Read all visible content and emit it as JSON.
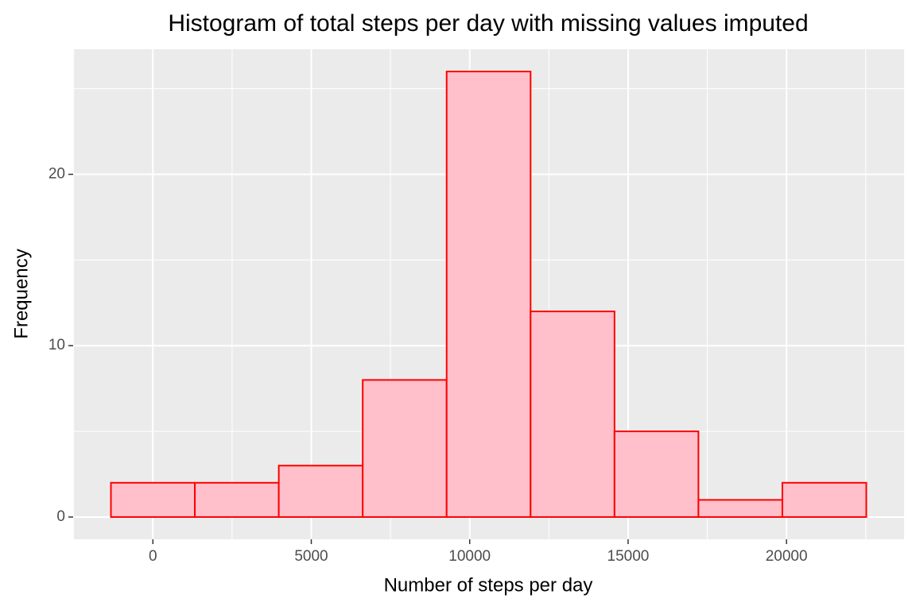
{
  "chart_data": {
    "type": "histogram",
    "title": "Histogram of total steps per day with missing values imputed",
    "x_label": "Number of steps per day",
    "y_label": "Frequency",
    "bins": [
      -1324.6,
      1324.6,
      3973.9,
      6623.1,
      9272.4,
      11921.6,
      14570.9,
      17220.1,
      19869.4,
      22518.6
    ],
    "values": [
      2,
      2,
      3,
      8,
      26,
      12,
      5,
      1,
      2
    ],
    "fill": "#ffc0cb",
    "edge_color": "#ff0000",
    "xlim": [
      -2516.8,
      23710.8
    ],
    "xticks": [
      0,
      5000,
      10000,
      15000,
      20000
    ],
    "ylim": [
      -1.3,
      27.3
    ],
    "yticks": [
      0,
      10,
      20
    ],
    "grid": true
  }
}
